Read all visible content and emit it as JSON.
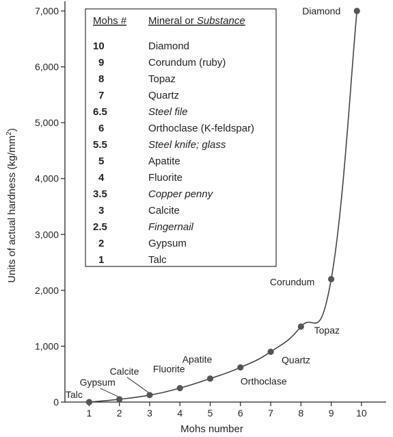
{
  "chart_data": {
    "type": "line",
    "xlabel": "Mohs number",
    "ylabel": "Units of actual hardness (kg/mm",
    "ylabel_sup": "2",
    "ylabel_end": ")",
    "xlim": [
      0.2,
      10.5
    ],
    "ylim": [
      0,
      7000
    ],
    "x_ticks": [
      1,
      2,
      3,
      4,
      5,
      6,
      7,
      8,
      9,
      10
    ],
    "y_ticks": [
      0,
      1000,
      2000,
      3000,
      4000,
      5000,
      6000,
      7000
    ],
    "y_tick_labels": [
      "0",
      "1,000",
      "2,000",
      "3,000",
      "4,000",
      "5,000",
      "6,000",
      "7,000"
    ],
    "grid": false,
    "series": [
      {
        "points": [
          {
            "x": 1,
            "y": 0,
            "label": "Talc"
          },
          {
            "x": 2,
            "y": 50,
            "label": "Gypsum"
          },
          {
            "x": 3,
            "y": 125,
            "label": "Calcite"
          },
          {
            "x": 4,
            "y": 250,
            "label": "Fluorite"
          },
          {
            "x": 5,
            "y": 420,
            "label": "Apatite"
          },
          {
            "x": 6,
            "y": 620,
            "label": "Orthoclase"
          },
          {
            "x": 7,
            "y": 900,
            "label": "Quartz"
          },
          {
            "x": 8,
            "y": 1350,
            "label": "Topaz"
          },
          {
            "x": 9,
            "y": 2200,
            "label": "Corundum"
          },
          {
            "x": 9.85,
            "y": 7000,
            "label": "Diamond"
          }
        ]
      }
    ],
    "table": {
      "headers": [
        "Mohs #",
        "Mineral or ",
        "Substance"
      ],
      "rows": [
        {
          "mohs": "10",
          "name": "Diamond",
          "italic": false
        },
        {
          "mohs": "9",
          "name": "Corundum (ruby)",
          "italic": false
        },
        {
          "mohs": "8",
          "name": "Topaz",
          "italic": false
        },
        {
          "mohs": "7",
          "name": "Quartz",
          "italic": false
        },
        {
          "mohs": "6.5",
          "name": "Steel file",
          "italic": true
        },
        {
          "mohs": "6",
          "name": "Orthoclase (K-feldspar)",
          "italic": false
        },
        {
          "mohs": "5.5",
          "name": "Steel knife; glass",
          "italic": true
        },
        {
          "mohs": "5",
          "name": "Apatite",
          "italic": false
        },
        {
          "mohs": "4",
          "name": "Fluorite",
          "italic": false
        },
        {
          "mohs": "3.5",
          "name": "Copper penny",
          "italic": true
        },
        {
          "mohs": "3",
          "name": "Calcite",
          "italic": false
        },
        {
          "mohs": "2.5",
          "name": "Fingernail",
          "italic": true
        },
        {
          "mohs": "2",
          "name": "Gypsum",
          "italic": false
        },
        {
          "mohs": "1",
          "name": "Talc",
          "italic": false
        }
      ]
    },
    "colors": {
      "axis": "#222222",
      "curve": "#444444",
      "marker": "#555555",
      "legend_border": "#333333"
    }
  }
}
